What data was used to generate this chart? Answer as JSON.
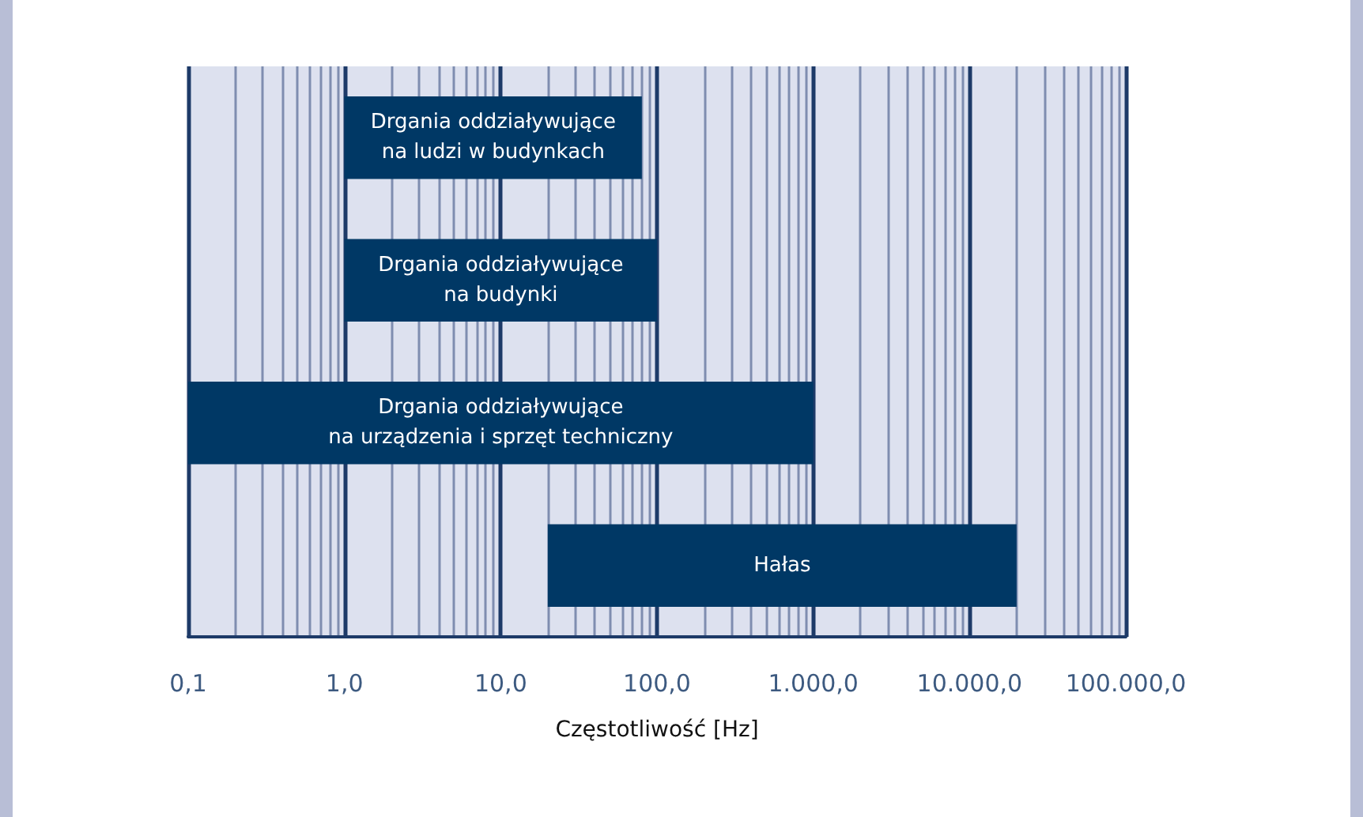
{
  "chart_data": {
    "type": "bar",
    "orientation": "horizontal",
    "xlabel": "Częstotliwość [Hz]",
    "log": "x",
    "grid": "x",
    "data_labels": false,
    "categories": [
      "Drgania oddziaływujące\nna ludzi w budynkach",
      "Drgania oddziaływujące\nna budynki",
      "Drgania oddziaływujące\nna urządzenia i sprzęt techniczny",
      "Hałas"
    ],
    "base": [
      1,
      1,
      0.1,
      20
    ],
    "values": [
      79,
      99,
      999.9,
      19980
    ],
    "color": "#003865",
    "xlim": [
      0.1,
      100000
    ],
    "xticks": [
      {
        "value": 0.1,
        "label": "0,1"
      },
      {
        "value": 0.2,
        "label": null
      },
      {
        "value": 0.3,
        "label": null
      },
      {
        "value": 0.4,
        "label": null
      },
      {
        "value": 0.5,
        "label": null
      },
      {
        "value": 0.6,
        "label": null
      },
      {
        "value": 0.7,
        "label": null
      },
      {
        "value": 0.8,
        "label": null
      },
      {
        "value": 0.9,
        "label": null
      },
      {
        "value": 1,
        "label": "1,0"
      },
      {
        "value": 2,
        "label": null
      },
      {
        "value": 3,
        "label": null
      },
      {
        "value": 4,
        "label": null
      },
      {
        "value": 5,
        "label": null
      },
      {
        "value": 6,
        "label": null
      },
      {
        "value": 7,
        "label": null
      },
      {
        "value": 8,
        "label": null
      },
      {
        "value": 9,
        "label": null
      },
      {
        "value": 10,
        "label": "10,0"
      },
      {
        "value": 20,
        "label": null
      },
      {
        "value": 30,
        "label": null
      },
      {
        "value": 40,
        "label": null
      },
      {
        "value": 50,
        "label": null
      },
      {
        "value": 60,
        "label": null
      },
      {
        "value": 70,
        "label": null
      },
      {
        "value": 80,
        "label": null
      },
      {
        "value": 90,
        "label": null
      },
      {
        "value": 100,
        "label": "100,0"
      },
      {
        "value": 200,
        "label": null
      },
      {
        "value": 300,
        "label": null
      },
      {
        "value": 400,
        "label": null
      },
      {
        "value": 500,
        "label": null
      },
      {
        "value": 600,
        "label": null
      },
      {
        "value": 700,
        "label": null
      },
      {
        "value": 800,
        "label": null
      },
      {
        "value": 900,
        "label": null
      },
      {
        "value": 1000,
        "label": "1.000,0"
      },
      {
        "value": 2000,
        "label": null
      },
      {
        "value": 3000,
        "label": null
      },
      {
        "value": 4000,
        "label": null
      },
      {
        "value": 5000,
        "label": null
      },
      {
        "value": 6000,
        "label": null
      },
      {
        "value": 7000,
        "label": null
      },
      {
        "value": 8000,
        "label": null
      },
      {
        "value": 9000,
        "label": null
      },
      {
        "value": 10000,
        "label": "10.000,0"
      },
      {
        "value": 20000,
        "label": null
      },
      {
        "value": 30000,
        "label": null
      },
      {
        "value": 40000,
        "label": null
      },
      {
        "value": 50000,
        "label": null
      },
      {
        "value": 60000,
        "label": null
      },
      {
        "value": 70000,
        "label": null
      },
      {
        "value": 80000,
        "label": null
      },
      {
        "value": 90000,
        "label": null
      },
      {
        "value": 100000,
        "label": "100.000,0"
      }
    ]
  }
}
